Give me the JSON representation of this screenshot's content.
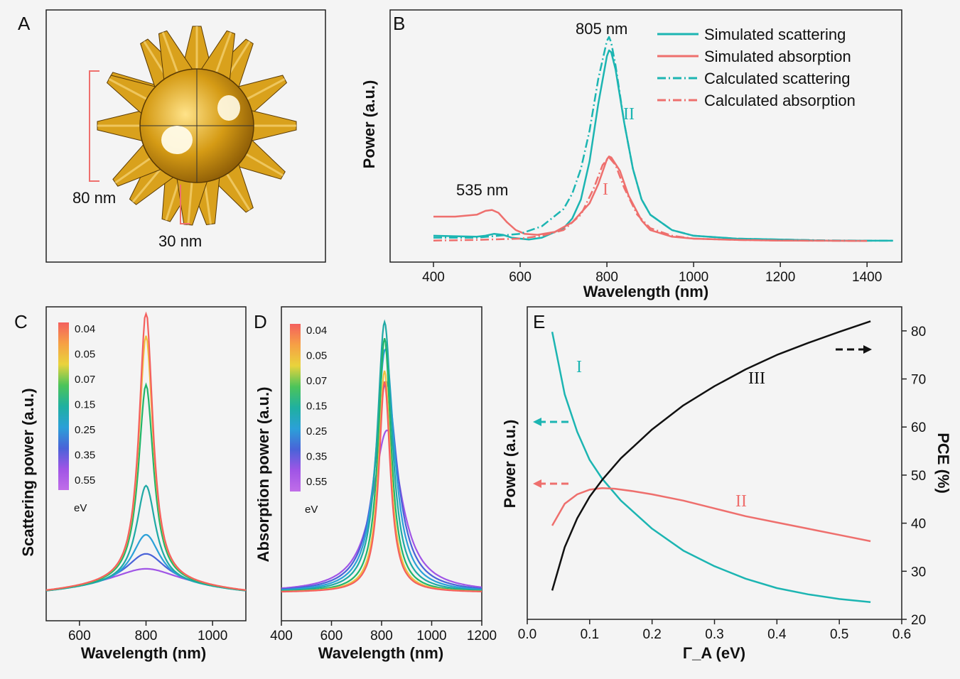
{
  "colors": {
    "teal": "#1cb5b2",
    "salmon": "#ee6f6d",
    "black": "#111111",
    "gold": "#d9a11c"
  },
  "panel_a": {
    "letter": "A",
    "dim1": "80 nm",
    "dim2": "30 nm"
  },
  "panel_b": {
    "letter": "B",
    "peak_label_1": "805 nm",
    "peak_label_2": "535 nm",
    "roman_1": "I",
    "roman_2": "II"
  },
  "panel_c": {
    "letter": "C",
    "colorbar_unit": "eV",
    "colorbar_labels": [
      "0.04",
      "0.05",
      "0.07",
      "0.15",
      "0.25",
      "0.35",
      "0.55"
    ]
  },
  "panel_d": {
    "letter": "D",
    "colorbar_unit": "eV",
    "colorbar_labels": [
      "0.04",
      "0.05",
      "0.07",
      "0.15",
      "0.25",
      "0.35",
      "0.55"
    ]
  },
  "panel_e": {
    "letter": "E",
    "roman_1": "I",
    "roman_2": "II",
    "roman_3": "III"
  },
  "chart_data": [
    {
      "id": "B",
      "type": "line",
      "xlabel": "Wavelength (nm)",
      "ylabel": "Power (a.u.)",
      "xlim": [
        300,
        1480
      ],
      "ylim": [
        0,
        1.08
      ],
      "x_ticks": [
        400,
        600,
        800,
        1000,
        1200,
        1400
      ],
      "legend_position": "top-right",
      "series": [
        {
          "name": "Simulated scattering",
          "color": "#1cb5b2",
          "dash": "solid",
          "x": [
            400,
            500,
            520,
            540,
            560,
            580,
            600,
            620,
            650,
            700,
            720,
            740,
            760,
            780,
            800,
            805,
            810,
            820,
            840,
            860,
            880,
            900,
            950,
            1000,
            1100,
            1200,
            1300,
            1400,
            1460
          ],
          "y": [
            0.03,
            0.025,
            0.03,
            0.04,
            0.035,
            0.02,
            0.015,
            0.01,
            0.02,
            0.07,
            0.12,
            0.22,
            0.42,
            0.72,
            0.97,
            1.0,
            0.99,
            0.9,
            0.62,
            0.38,
            0.22,
            0.14,
            0.06,
            0.03,
            0.015,
            0.01,
            0.005,
            0.004,
            0.004
          ]
        },
        {
          "name": "Simulated absorption",
          "color": "#ee6f6d",
          "dash": "solid",
          "x": [
            400,
            450,
            500,
            520,
            535,
            550,
            570,
            590,
            610,
            640,
            680,
            720,
            760,
            780,
            800,
            805,
            810,
            830,
            850,
            880,
            900,
            950,
            1000,
            1100,
            1200,
            1300,
            1400
          ],
          "y": [
            0.13,
            0.13,
            0.14,
            0.16,
            0.165,
            0.15,
            0.1,
            0.06,
            0.04,
            0.035,
            0.05,
            0.1,
            0.2,
            0.3,
            0.43,
            0.445,
            0.44,
            0.37,
            0.24,
            0.11,
            0.06,
            0.025,
            0.015,
            0.008,
            0.005,
            0.004,
            0.003
          ]
        },
        {
          "name": "Calculated scattering",
          "color": "#1cb5b2",
          "dash": "dashdot",
          "x": [
            400,
            500,
            600,
            650,
            700,
            720,
            740,
            760,
            780,
            800,
            805,
            810,
            820,
            840,
            860,
            880,
            900,
            950,
            1000,
            1100,
            1200,
            1300,
            1400,
            1460
          ],
          "y": [
            0.02,
            0.02,
            0.04,
            0.08,
            0.17,
            0.25,
            0.38,
            0.58,
            0.85,
            1.05,
            1.07,
            1.04,
            0.92,
            0.62,
            0.38,
            0.22,
            0.14,
            0.06,
            0.03,
            0.015,
            0.01,
            0.006,
            0.004,
            0.004
          ]
        },
        {
          "name": "Calculated absorption",
          "color": "#ee6f6d",
          "dash": "dashdot",
          "x": [
            400,
            500,
            600,
            650,
            700,
            740,
            770,
            790,
            805,
            820,
            840,
            870,
            900,
            950,
            1000,
            1100,
            1200,
            1300,
            1400
          ],
          "y": [
            0.005,
            0.008,
            0.015,
            0.03,
            0.06,
            0.14,
            0.28,
            0.4,
            0.44,
            0.4,
            0.28,
            0.14,
            0.07,
            0.03,
            0.015,
            0.008,
            0.005,
            0.004,
            0.003
          ]
        }
      ]
    },
    {
      "id": "C",
      "type": "line",
      "xlabel": "Wavelength (nm)",
      "ylabel": "Scattering power (a.u.)",
      "xlim": [
        500,
        1100
      ],
      "ylim": [
        0,
        1.05
      ],
      "x_ticks": [
        600,
        800,
        1000
      ],
      "peak_center": 800,
      "series": [
        {
          "name": "0.04",
          "color": "#f4605e",
          "peak": 1.0,
          "width": 50
        },
        {
          "name": "0.05",
          "color": "#f0c040",
          "peak": 0.91,
          "width": 52
        },
        {
          "name": "0.07",
          "color": "#22b56a",
          "peak": 0.73,
          "width": 55
        },
        {
          "name": "0.15",
          "color": "#1fa9a5",
          "peak": 0.36,
          "width": 70
        },
        {
          "name": "0.25",
          "color": "#2ba0d8",
          "peak": 0.18,
          "width": 100
        },
        {
          "name": "0.35",
          "color": "#4a63d8",
          "peak": 0.11,
          "width": 140
        },
        {
          "name": "0.55",
          "color": "#a055e6",
          "peak": 0.055,
          "width": 220
        }
      ]
    },
    {
      "id": "D",
      "type": "line",
      "xlabel": "Wavelength (nm)",
      "ylabel": "Absorption power (a.u.)",
      "xlim": [
        400,
        1200
      ],
      "ylim": [
        0,
        1.05
      ],
      "x_ticks": [
        400,
        600,
        800,
        1000,
        1200
      ],
      "series": [
        {
          "name": "0.04",
          "color": "#f4605e",
          "peak": 0.78,
          "center": 812,
          "width": 55
        },
        {
          "name": "0.05",
          "color": "#f0c040",
          "peak": 0.82,
          "center": 812,
          "width": 58
        },
        {
          "name": "0.07",
          "color": "#22b56a",
          "peak": 0.94,
          "center": 812,
          "width": 62
        },
        {
          "name": "0.15",
          "color": "#1fa9a5",
          "peak": 1.0,
          "center": 812,
          "width": 72
        },
        {
          "name": "0.25",
          "color": "#2ba0d8",
          "peak": 0.9,
          "center": 815,
          "width": 88
        },
        {
          "name": "0.35",
          "color": "#4a63d8",
          "peak": 0.78,
          "center": 818,
          "width": 108
        },
        {
          "name": "0.55",
          "color": "#a055e6",
          "peak": 0.6,
          "center": 822,
          "width": 140
        }
      ]
    },
    {
      "id": "E",
      "type": "line",
      "xlabel": "Γ_A (eV)",
      "ylabel_left": "Power (a.u.)",
      "ylabel_right": "PCE (%)",
      "xlim": [
        0.0,
        0.6
      ],
      "x_ticks": [
        0.0,
        0.1,
        0.2,
        0.3,
        0.4,
        0.5,
        0.6
      ],
      "ylim_right": [
        20,
        85
      ],
      "y_ticks_right": [
        20,
        30,
        40,
        50,
        60,
        70,
        80
      ],
      "series": [
        {
          "name": "I",
          "color": "#1cb5b2",
          "axis": "left",
          "x": [
            0.04,
            0.06,
            0.08,
            0.1,
            0.12,
            0.15,
            0.2,
            0.25,
            0.3,
            0.35,
            0.4,
            0.45,
            0.5,
            0.55
          ],
          "y": [
            0.92,
            0.72,
            0.6,
            0.51,
            0.45,
            0.38,
            0.29,
            0.22,
            0.17,
            0.13,
            0.1,
            0.08,
            0.065,
            0.055
          ]
        },
        {
          "name": "II",
          "color": "#ee6f6d",
          "axis": "left",
          "x": [
            0.04,
            0.06,
            0.08,
            0.1,
            0.12,
            0.14,
            0.17,
            0.2,
            0.25,
            0.3,
            0.35,
            0.4,
            0.45,
            0.5,
            0.55
          ],
          "y": [
            0.3,
            0.37,
            0.4,
            0.415,
            0.42,
            0.418,
            0.41,
            0.4,
            0.38,
            0.355,
            0.33,
            0.31,
            0.29,
            0.27,
            0.25
          ]
        },
        {
          "name": "III",
          "color": "#111111",
          "axis": "right",
          "x": [
            0.04,
            0.06,
            0.08,
            0.1,
            0.12,
            0.15,
            0.2,
            0.25,
            0.3,
            0.35,
            0.4,
            0.45,
            0.5,
            0.55
          ],
          "y": [
            26,
            35,
            41,
            45.5,
            49,
            53.5,
            59.5,
            64.5,
            68.5,
            72,
            75,
            77.5,
            79.8,
            82
          ]
        }
      ]
    }
  ]
}
